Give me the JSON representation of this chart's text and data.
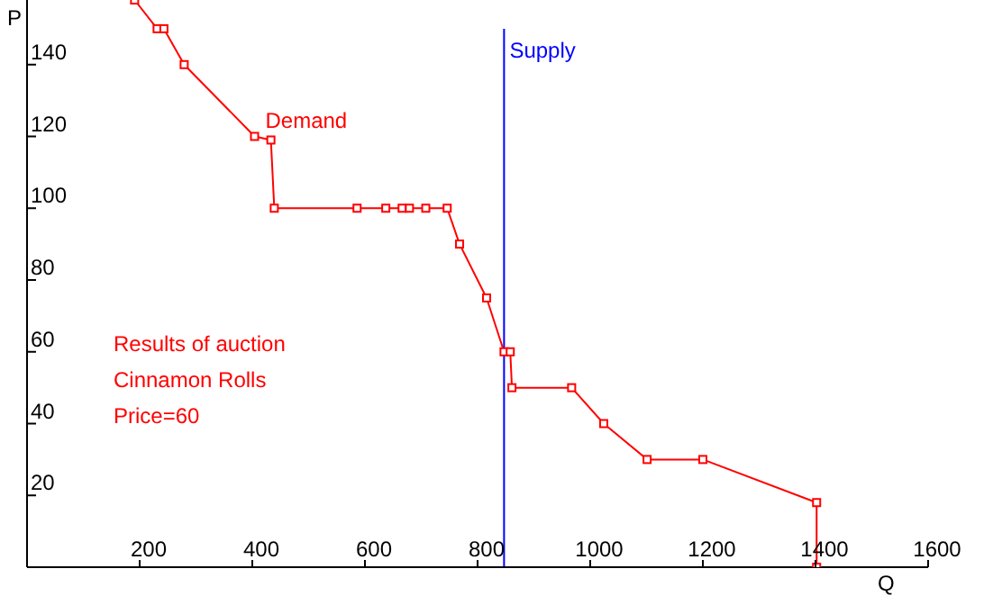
{
  "chart_data": {
    "type": "line",
    "xlabel": "Q",
    "ylabel": "P",
    "xlim": [
      0,
      1600
    ],
    "ylim": [
      0,
      158
    ],
    "xticks": [
      200,
      400,
      600,
      800,
      1000,
      1200,
      1400,
      1600
    ],
    "yticks": [
      20,
      40,
      60,
      80,
      100,
      120,
      140
    ],
    "grid": false,
    "legend": false,
    "marker": "square",
    "line_style": "solid",
    "series": [
      {
        "name": "Demand",
        "color": "#ff0000",
        "x": [
          191,
          231,
          243,
          279,
          404,
          433,
          439,
          586,
          637,
          666,
          679,
          708,
          746,
          768,
          816,
          847,
          858,
          861,
          967,
          1024,
          1101,
          1200,
          1402,
          1402
        ],
        "values": [
          158,
          150,
          150,
          140,
          120,
          119,
          100,
          100,
          100,
          100,
          100,
          100,
          100,
          90,
          75,
          60,
          60,
          50,
          50,
          40,
          30,
          30,
          18,
          0
        ]
      },
      {
        "name": "Supply",
        "color": "#0000ff",
        "marker": "none",
        "x": [
          847,
          847
        ],
        "values": [
          0,
          150
        ]
      }
    ],
    "annotations": [
      "Results of auction",
      "Cinnamon Rolls",
      "Price=60"
    ]
  }
}
